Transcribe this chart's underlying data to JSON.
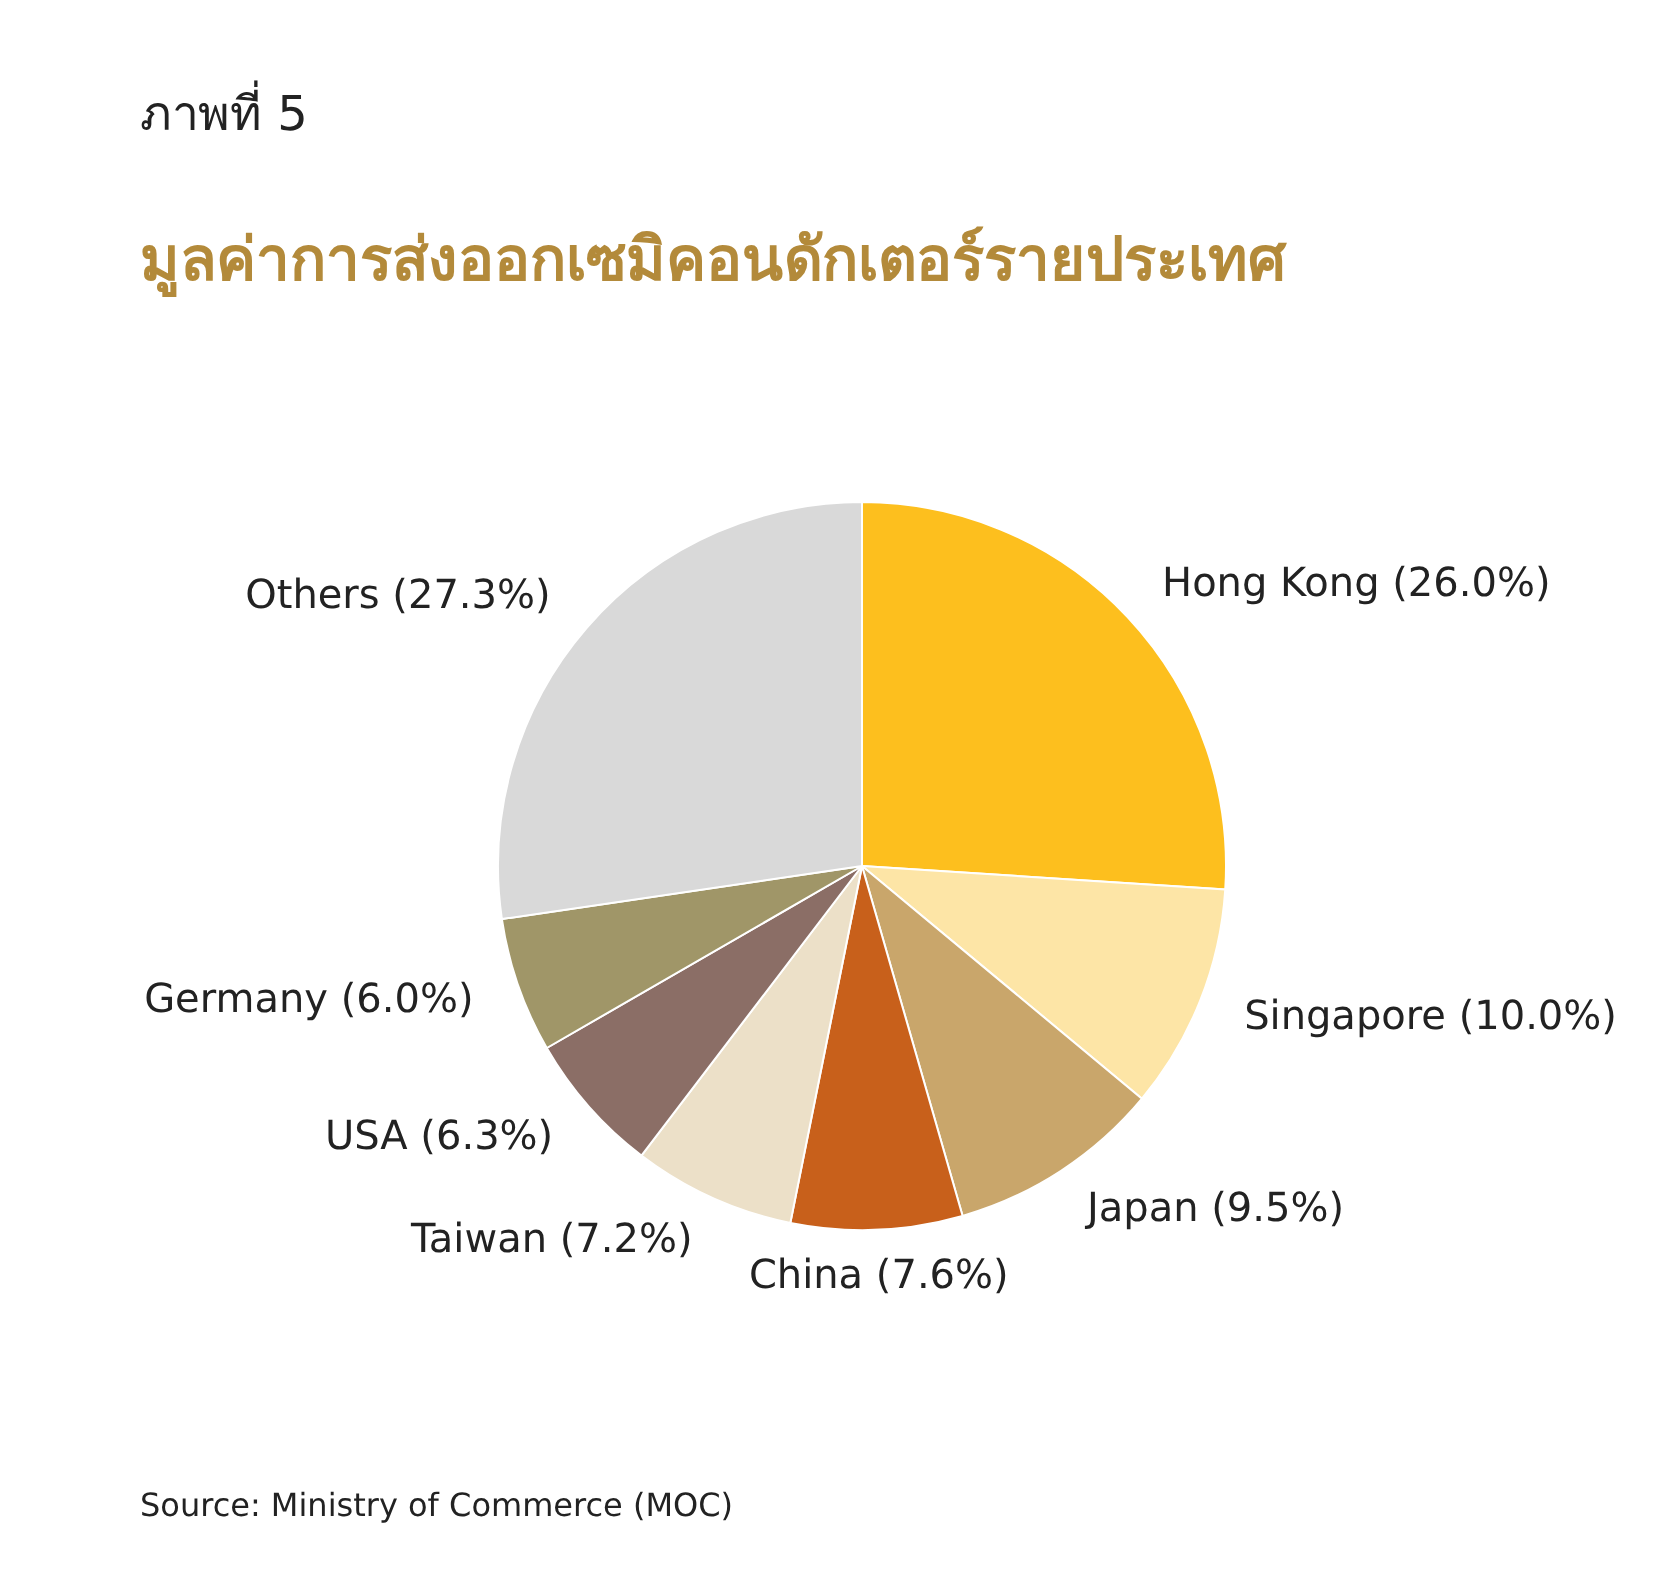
{
  "chart_data": {
    "type": "pie",
    "title": "ภาพที่ 5",
    "subtitle": "มูลค่าการส่งออกเซมิคอนดักเตอร์รายประเทศ",
    "categories": [
      "Hong Kong",
      "Singapore",
      "Japan",
      "China",
      "Taiwan",
      "USA",
      "Germany",
      "Others"
    ],
    "values": [
      26.0,
      10.0,
      9.5,
      7.6,
      7.2,
      6.3,
      6.0,
      27.3
    ],
    "colors": [
      "#fdbf1e",
      "#fde5a6",
      "#c9a66b",
      "#c8601b",
      "#ece0c8",
      "#8b6e66",
      "#a09668",
      "#d9d9d9"
    ],
    "value_labels": [
      "(26.0%)",
      "(10.0%)",
      "(9.5%)",
      "(7.6%)",
      "(7.2%)",
      "(6.3%)",
      "(6.0%)",
      "(27.3%)"
    ],
    "annotations": [
      "Source: Ministry of Commerce (MOC)"
    ]
  }
}
